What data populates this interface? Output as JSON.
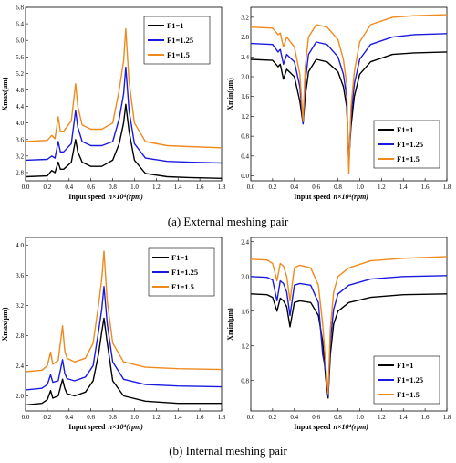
{
  "colors": {
    "F1=1": "#000000",
    "F1=1.25": "#1a1adf",
    "F1=1.5": "#ef8a1e"
  },
  "captions": [
    "(a) External meshing pair",
    "(b) Internal meshing pair"
  ],
  "chart_data": [
    {
      "type": "line",
      "xlabel": "Input speed",
      "xlabel_math": "n×10⁴(rpm)",
      "ylabel": "Xmax(μm)",
      "xlim": [
        0,
        1.8
      ],
      "ylim": [
        2.6,
        6.8
      ],
      "xticks": [
        "0.0",
        "0.2",
        "0.4",
        "0.6",
        "0.8",
        "1.0",
        "1.2",
        "1.4",
        "1.6",
        "1.8"
      ],
      "yticks": [
        "2.8",
        "3.2",
        "3.6",
        "4.0",
        "4.4",
        "4.8",
        "5.2",
        "5.6",
        "6.0",
        "6.4",
        "6.8"
      ],
      "legend": "top-right",
      "series": [
        {
          "name": "F1=1",
          "x": [
            0,
            0.2,
            0.24,
            0.27,
            0.3,
            0.32,
            0.35,
            0.42,
            0.46,
            0.48,
            0.52,
            0.6,
            0.7,
            0.8,
            0.86,
            0.9,
            0.92,
            0.95,
            1.0,
            1.1,
            1.3,
            1.5,
            1.8
          ],
          "values": [
            2.7,
            2.72,
            2.85,
            2.8,
            3.05,
            2.88,
            2.88,
            3.05,
            3.6,
            3.3,
            3.05,
            2.95,
            2.95,
            3.1,
            3.5,
            4.0,
            4.45,
            3.8,
            3.1,
            2.78,
            2.7,
            2.68,
            2.66
          ]
        },
        {
          "name": "F1=1.25",
          "x": [
            0,
            0.2,
            0.24,
            0.27,
            0.3,
            0.32,
            0.35,
            0.42,
            0.46,
            0.48,
            0.52,
            0.6,
            0.7,
            0.8,
            0.86,
            0.9,
            0.92,
            0.95,
            1.0,
            1.1,
            1.3,
            1.5,
            1.8
          ],
          "values": [
            3.1,
            3.12,
            3.2,
            3.15,
            3.55,
            3.3,
            3.3,
            3.5,
            4.3,
            3.9,
            3.55,
            3.45,
            3.45,
            3.55,
            4.1,
            4.7,
            5.35,
            4.3,
            3.5,
            3.15,
            3.07,
            3.05,
            3.03
          ]
        },
        {
          "name": "F1=1.5",
          "x": [
            0,
            0.2,
            0.24,
            0.27,
            0.3,
            0.32,
            0.35,
            0.42,
            0.46,
            0.48,
            0.52,
            0.6,
            0.7,
            0.8,
            0.86,
            0.9,
            0.92,
            0.95,
            1.0,
            1.1,
            1.3,
            1.5,
            1.8
          ],
          "values": [
            3.55,
            3.58,
            3.7,
            3.62,
            4.15,
            3.8,
            3.8,
            4.05,
            4.95,
            4.4,
            3.95,
            3.85,
            3.85,
            4.0,
            4.8,
            5.5,
            6.28,
            5.0,
            4.0,
            3.55,
            3.45,
            3.43,
            3.4
          ]
        }
      ]
    },
    {
      "type": "line",
      "xlabel": "Input speed",
      "xlabel_math": "n×10⁴(rpm)",
      "ylabel": "Xmin(μm)",
      "xlim": [
        0,
        1.8
      ],
      "ylim": [
        -0.1,
        3.4
      ],
      "xticks": [
        "0.0",
        "0.2",
        "0.4",
        "0.6",
        "0.8",
        "1.0",
        "1.2",
        "1.4",
        "1.6",
        "1.8"
      ],
      "yticks": [
        "0.0",
        "0.4",
        "0.8",
        "1.2",
        "1.6",
        "2.0",
        "2.4",
        "2.8",
        "3.2"
      ],
      "legend": "bottom-right",
      "series": [
        {
          "name": "F1=1",
          "x": [
            0,
            0.2,
            0.25,
            0.27,
            0.3,
            0.33,
            0.4,
            0.45,
            0.48,
            0.5,
            0.53,
            0.6,
            0.7,
            0.8,
            0.85,
            0.88,
            0.9,
            0.92,
            0.95,
            1.0,
            1.1,
            1.3,
            1.5,
            1.8
          ],
          "values": [
            2.35,
            2.33,
            2.2,
            2.25,
            1.95,
            2.15,
            2.0,
            1.5,
            1.05,
            1.6,
            2.1,
            2.35,
            2.3,
            2.1,
            1.8,
            1.4,
            0.3,
            1.0,
            1.6,
            2.05,
            2.3,
            2.45,
            2.48,
            2.5
          ]
        },
        {
          "name": "F1=1.25",
          "x": [
            0,
            0.2,
            0.25,
            0.27,
            0.3,
            0.33,
            0.4,
            0.45,
            0.48,
            0.5,
            0.53,
            0.6,
            0.7,
            0.8,
            0.85,
            0.88,
            0.9,
            0.92,
            0.95,
            1.0,
            1.1,
            1.3,
            1.5,
            1.8
          ],
          "values": [
            2.67,
            2.65,
            2.5,
            2.55,
            2.25,
            2.45,
            2.3,
            1.8,
            1.05,
            1.9,
            2.45,
            2.7,
            2.65,
            2.4,
            2.05,
            1.6,
            0.2,
            1.2,
            1.85,
            2.35,
            2.65,
            2.8,
            2.85,
            2.87
          ]
        },
        {
          "name": "F1=1.5",
          "x": [
            0,
            0.2,
            0.25,
            0.27,
            0.3,
            0.33,
            0.4,
            0.45,
            0.48,
            0.5,
            0.53,
            0.6,
            0.7,
            0.8,
            0.85,
            0.88,
            0.9,
            0.92,
            0.95,
            1.0,
            1.1,
            1.3,
            1.5,
            1.8
          ],
          "values": [
            3.0,
            2.98,
            2.85,
            2.88,
            2.6,
            2.8,
            2.6,
            2.05,
            1.1,
            2.2,
            2.8,
            3.05,
            3.0,
            2.75,
            2.35,
            1.85,
            0.05,
            1.4,
            2.1,
            2.7,
            3.05,
            3.2,
            3.23,
            3.25
          ]
        }
      ]
    },
    {
      "type": "line",
      "xlabel": "Input speed",
      "xlabel_math": "n×10⁴(rpm)",
      "ylabel": "Xmax(μm)",
      "xlim": [
        0,
        1.8
      ],
      "ylim": [
        1.8,
        4.1
      ],
      "xticks": [
        "0.0",
        "0.2",
        "0.4",
        "0.6",
        "0.8",
        "1.0",
        "1.2",
        "1.4",
        "1.6",
        "1.8"
      ],
      "yticks": [
        "2.0",
        "2.4",
        "2.8",
        "3.2",
        "3.6",
        "4.0"
      ],
      "legend": "top-right",
      "series": [
        {
          "name": "F1=1",
          "x": [
            0,
            0.15,
            0.2,
            0.23,
            0.25,
            0.3,
            0.34,
            0.36,
            0.38,
            0.45,
            0.55,
            0.62,
            0.67,
            0.7,
            0.72,
            0.75,
            0.8,
            0.9,
            1.1,
            1.4,
            1.8
          ],
          "values": [
            1.88,
            1.9,
            1.95,
            2.07,
            1.97,
            2.0,
            2.22,
            2.1,
            2.03,
            2.0,
            2.05,
            2.2,
            2.55,
            2.85,
            3.03,
            2.7,
            2.2,
            2.0,
            1.93,
            1.9,
            1.9
          ]
        },
        {
          "name": "F1=1.25",
          "x": [
            0,
            0.15,
            0.2,
            0.23,
            0.25,
            0.3,
            0.34,
            0.36,
            0.38,
            0.45,
            0.55,
            0.62,
            0.67,
            0.7,
            0.72,
            0.75,
            0.8,
            0.9,
            1.1,
            1.4,
            1.8
          ],
          "values": [
            2.08,
            2.1,
            2.15,
            2.28,
            2.18,
            2.2,
            2.48,
            2.3,
            2.23,
            2.2,
            2.25,
            2.4,
            2.85,
            3.15,
            3.45,
            2.95,
            2.45,
            2.22,
            2.15,
            2.13,
            2.12
          ]
        },
        {
          "name": "F1=1.5",
          "x": [
            0,
            0.15,
            0.2,
            0.23,
            0.25,
            0.3,
            0.34,
            0.36,
            0.38,
            0.45,
            0.55,
            0.62,
            0.67,
            0.7,
            0.72,
            0.75,
            0.8,
            0.9,
            1.1,
            1.4,
            1.8
          ],
          "values": [
            2.32,
            2.34,
            2.4,
            2.58,
            2.42,
            2.47,
            2.93,
            2.6,
            2.5,
            2.45,
            2.5,
            2.7,
            3.2,
            3.55,
            3.92,
            3.25,
            2.7,
            2.45,
            2.38,
            2.36,
            2.35
          ]
        }
      ]
    },
    {
      "type": "line",
      "xlabel": "Input speed",
      "xlabel_math": "n×10⁴(rpm)",
      "ylabel": "Xmin(μm)",
      "xlim": [
        0,
        1.8
      ],
      "ylim": [
        0.45,
        2.45
      ],
      "xticks": [
        "0.0",
        "0.2",
        "0.4",
        "0.6",
        "0.8",
        "1.0",
        "1.2",
        "1.4",
        "1.6",
        "1.8"
      ],
      "yticks": [
        "0.8",
        "1.2",
        "1.6",
        "2.0",
        "2.4"
      ],
      "legend": "bottom-right",
      "series": [
        {
          "name": "F1=1",
          "x": [
            0,
            0.15,
            0.2,
            0.24,
            0.27,
            0.3,
            0.33,
            0.36,
            0.4,
            0.45,
            0.55,
            0.62,
            0.66,
            0.69,
            0.71,
            0.73,
            0.76,
            0.8,
            0.9,
            1.1,
            1.4,
            1.8
          ],
          "values": [
            1.8,
            1.79,
            1.76,
            1.6,
            1.75,
            1.72,
            1.65,
            1.42,
            1.7,
            1.72,
            1.7,
            1.55,
            1.25,
            0.8,
            0.6,
            1.1,
            1.45,
            1.6,
            1.7,
            1.76,
            1.79,
            1.8
          ]
        },
        {
          "name": "F1=1.25",
          "x": [
            0,
            0.15,
            0.2,
            0.24,
            0.27,
            0.3,
            0.33,
            0.36,
            0.4,
            0.45,
            0.55,
            0.62,
            0.66,
            0.69,
            0.71,
            0.73,
            0.76,
            0.8,
            0.9,
            1.1,
            1.4,
            1.8
          ],
          "values": [
            2.0,
            1.99,
            1.96,
            1.72,
            1.95,
            1.92,
            1.82,
            1.55,
            1.9,
            1.92,
            1.9,
            1.7,
            1.1,
            0.9,
            0.62,
            1.25,
            1.62,
            1.8,
            1.9,
            1.97,
            2.0,
            2.01
          ]
        },
        {
          "name": "F1=1.5",
          "x": [
            0,
            0.15,
            0.2,
            0.24,
            0.27,
            0.3,
            0.33,
            0.36,
            0.4,
            0.45,
            0.55,
            0.62,
            0.66,
            0.69,
            0.71,
            0.73,
            0.76,
            0.8,
            0.9,
            1.1,
            1.4,
            1.8
          ],
          "values": [
            2.2,
            2.19,
            2.15,
            1.95,
            2.15,
            2.12,
            2.0,
            1.72,
            2.1,
            2.13,
            2.1,
            1.9,
            1.45,
            0.95,
            0.65,
            1.4,
            1.82,
            2.0,
            2.1,
            2.18,
            2.21,
            2.23
          ]
        }
      ]
    }
  ]
}
